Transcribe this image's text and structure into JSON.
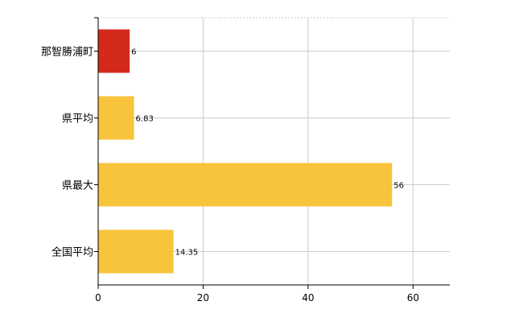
{
  "chart_data": {
    "type": "bar",
    "orientation": "horizontal",
    "title": "",
    "xlabel": "",
    "ylabel": "",
    "categories": [
      "那智勝浦町",
      "県平均",
      "県最大",
      "全国平均"
    ],
    "values": [
      6,
      6.83,
      56,
      14.35
    ],
    "value_labels": [
      "6",
      "6.83",
      "56",
      "14.35"
    ],
    "bar_colors": [
      "#d42a1c",
      "#f7c43b",
      "#f7c43b",
      "#f7c43b"
    ],
    "xlim": [
      0,
      67
    ],
    "xticks": [
      0,
      20,
      40,
      60
    ],
    "xtick_labels": [
      "0",
      "20",
      "40",
      "60"
    ],
    "grid": true,
    "legend": "none"
  }
}
